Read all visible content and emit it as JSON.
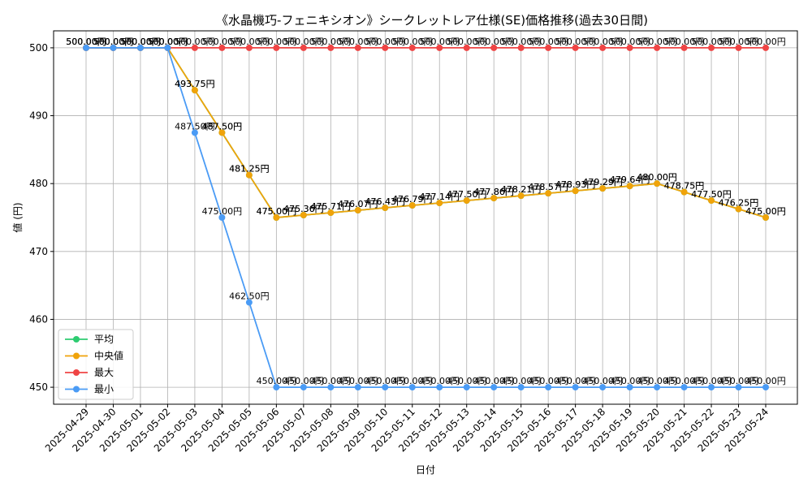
{
  "chart_data": {
    "type": "line",
    "title": "《水晶機巧-フェニキシオン》シークレットレア仕様(SE)価格推移(過去30日間)",
    "xlabel": "日付",
    "ylabel": "値 (円)",
    "ylim": [
      447.5,
      502.5
    ],
    "yticks": [
      450,
      460,
      470,
      480,
      490,
      500
    ],
    "grid": true,
    "legend_position": "lower-left",
    "value_suffix": "円",
    "categories": [
      "2025-04-29",
      "2025-04-30",
      "2025-05-01",
      "2025-05-02",
      "2025-05-03",
      "2025-05-04",
      "2025-05-05",
      "2025-05-06",
      "2025-05-07",
      "2025-05-08",
      "2025-05-09",
      "2025-05-10",
      "2025-05-11",
      "2025-05-12",
      "2025-05-13",
      "2025-05-14",
      "2025-05-15",
      "2025-05-16",
      "2025-05-17",
      "2025-05-18",
      "2025-05-19",
      "2025-05-20",
      "2025-05-21",
      "2025-05-22",
      "2025-05-23",
      "2025-05-24"
    ],
    "series": [
      {
        "name": "平均",
        "color": "#2ecc71",
        "values": [
          500,
          500,
          500,
          500,
          493.75,
          487.5,
          481.25,
          475,
          475.36,
          475.71,
          476.07,
          476.43,
          476.79,
          477.14,
          477.5,
          477.86,
          478.21,
          478.57,
          478.93,
          479.29,
          479.64,
          480,
          478.75,
          477.5,
          476.25,
          475
        ]
      },
      {
        "name": "中央値",
        "color": "#f0a30a",
        "values": [
          500,
          500,
          500,
          500,
          493.75,
          487.5,
          481.25,
          475,
          475.36,
          475.71,
          476.07,
          476.43,
          476.79,
          477.14,
          477.5,
          477.86,
          478.21,
          478.57,
          478.93,
          479.29,
          479.64,
          480,
          478.75,
          477.5,
          476.25,
          475
        ]
      },
      {
        "name": "最大",
        "color": "#ef4444",
        "values": [
          500,
          500,
          500,
          500,
          500,
          500,
          500,
          500,
          500,
          500,
          500,
          500,
          500,
          500,
          500,
          500,
          500,
          500,
          500,
          500,
          500,
          500,
          500,
          500,
          500,
          500
        ]
      },
      {
        "name": "最小",
        "color": "#4a9bf5",
        "values": [
          500,
          500,
          500,
          500,
          487.5,
          475,
          462.5,
          450,
          450,
          450,
          450,
          450,
          450,
          450,
          450,
          450,
          450,
          450,
          450,
          450,
          450,
          450,
          450,
          450,
          450,
          450
        ]
      }
    ]
  }
}
